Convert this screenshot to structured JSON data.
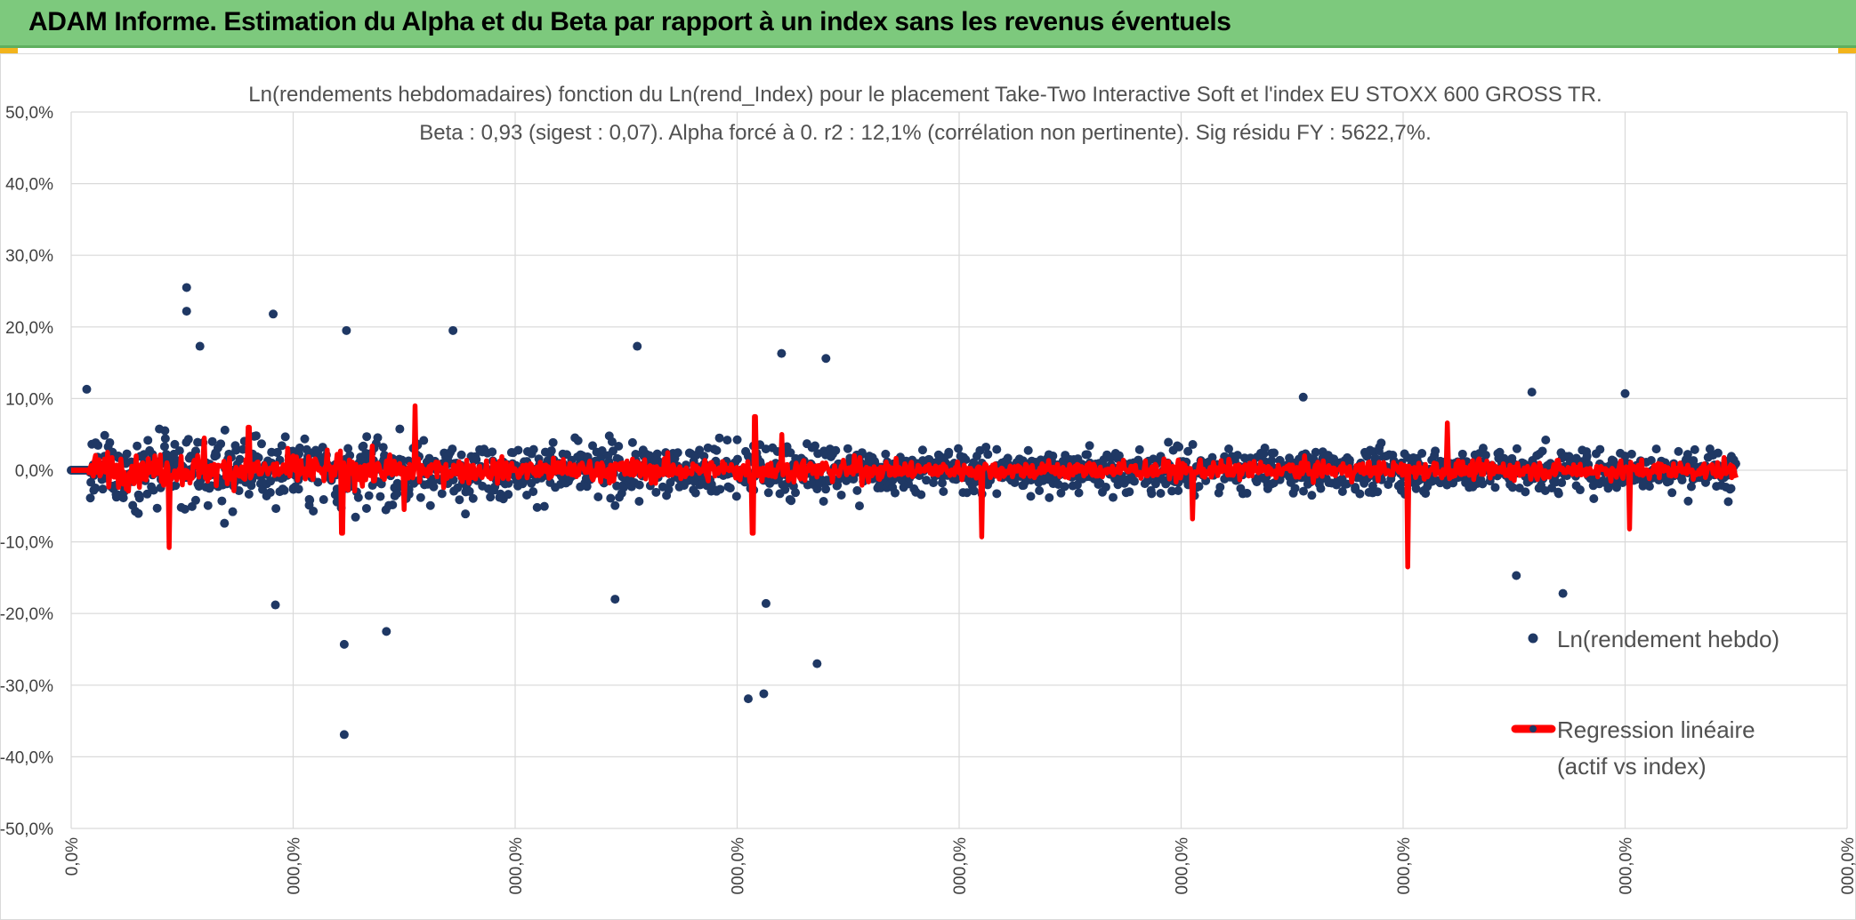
{
  "header": {
    "title": "ADAM Informe. Estimation du Alpha et du Beta par rapport à un index sans les revenus éventuels"
  },
  "colors": {
    "header_bg": "#7dc97d",
    "points": "#1f3864",
    "regression": "#ff0000",
    "grid": "#d9d9d9",
    "corner_accent": "#f2b41c"
  },
  "chart_data": {
    "type": "scatter",
    "title_line1": "Ln(rendements hebdomadaires) fonction du Ln(rend_Index) pour le placement Take-Two Interactive Soft et l'index EU STOXX 600 GROSS TR.",
    "title_line2": "Beta : 0,93 (sigest : 0,07). Alpha forcé à 0. r2 : 12,1% (corrélation non pertinente). Sig résidu FY : 5622,7%.",
    "ylim": [
      -50,
      50
    ],
    "y_ticks": [
      "50,0%",
      "40,0%",
      "30,0%",
      "20,0%",
      "10,0%",
      "0,0%",
      "-10,0%",
      "-20,0%",
      "-30,0%",
      "-40,0%",
      "-50,0%"
    ],
    "y_tick_values": [
      50,
      40,
      30,
      20,
      10,
      0,
      -10,
      -20,
      -30,
      -40,
      -50
    ],
    "x_ticks": [
      "0,0%",
      "000,0%",
      "000,0%",
      "000,0%",
      "000,0%",
      "000,0%",
      "000,0%",
      "000,0%",
      "000,0%"
    ],
    "x_tick_values": [
      0,
      1,
      2,
      3,
      4,
      5,
      6,
      7,
      8
    ],
    "series": [
      {
        "name": "Ln(rendement hebdo)",
        "kind": "points"
      },
      {
        "name": "Regression linéaire (actif vs index)",
        "kind": "line",
        "name_line1": "Regression linéaire",
        "name_line2": "(actif vs index)"
      }
    ],
    "notable_points": [
      {
        "x": 0.52,
        "y": 25.5
      },
      {
        "x": 0.52,
        "y": 22.2
      },
      {
        "x": 0.58,
        "y": 17.3
      },
      {
        "x": 0.91,
        "y": 21.8
      },
      {
        "x": 1.24,
        "y": 19.5
      },
      {
        "x": 1.72,
        "y": 19.5
      },
      {
        "x": 1.23,
        "y": -24.3
      },
      {
        "x": 1.23,
        "y": -36.9
      },
      {
        "x": 1.42,
        "y": -22.5
      },
      {
        "x": 2.55,
        "y": 17.3
      },
      {
        "x": 3.2,
        "y": 16.3
      },
      {
        "x": 3.4,
        "y": 15.6
      },
      {
        "x": 3.05,
        "y": -31.9
      },
      {
        "x": 3.12,
        "y": -31.2
      },
      {
        "x": 3.36,
        "y": -27.0
      },
      {
        "x": 3.13,
        "y": -18.6
      },
      {
        "x": 0.92,
        "y": -18.8
      },
      {
        "x": 2.45,
        "y": -18.0
      },
      {
        "x": 5.55,
        "y": 10.2
      },
      {
        "x": 6.58,
        "y": 10.9
      },
      {
        "x": 6.51,
        "y": -14.7
      },
      {
        "x": 6.72,
        "y": -17.2
      },
      {
        "x": 7.0,
        "y": 10.7
      },
      {
        "x": 0.07,
        "y": 11.3
      }
    ],
    "regression_spikes": [
      {
        "x": 0.44,
        "y": -10.8
      },
      {
        "x": 0.6,
        "y": 4.5
      },
      {
        "x": 0.8,
        "y": 6.0
      },
      {
        "x": 1.22,
        "y": -8.8
      },
      {
        "x": 1.55,
        "y": 9.0
      },
      {
        "x": 1.5,
        "y": -5.5
      },
      {
        "x": 3.08,
        "y": 7.5
      },
      {
        "x": 3.07,
        "y": -8.8
      },
      {
        "x": 3.2,
        "y": 5.0
      },
      {
        "x": 4.1,
        "y": -9.3
      },
      {
        "x": 5.05,
        "y": -6.8
      },
      {
        "x": 6.02,
        "y": -13.5
      },
      {
        "x": 6.2,
        "y": 6.6
      },
      {
        "x": 7.02,
        "y": -8.2
      }
    ],
    "regression_x_range": [
      0,
      7.5
    ]
  }
}
